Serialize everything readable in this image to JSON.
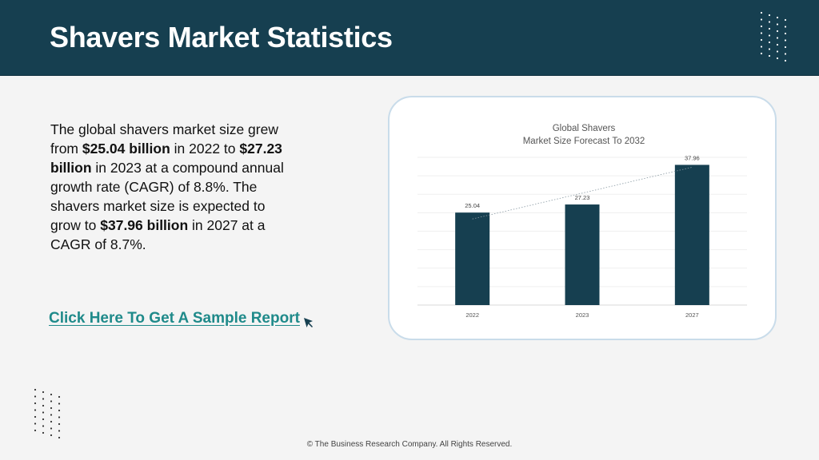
{
  "header": {
    "title": "Shavers Market Statistics"
  },
  "body_text": {
    "p1": "The global shavers market size grew from ",
    "b1": "$25.04 billion",
    "p2": " in 2022 to ",
    "b2": "$27.23 billion",
    "p3": " in 2023 at a compound annual growth rate (CAGR) of 8.8%. The shavers market size is expected to grow to ",
    "b3": "$37.96 billion",
    "p4": " in 2027 at a CAGR of 8.7%."
  },
  "cta": {
    "label": "Click Here To Get A Sample Report",
    "icon": "cursor-arrow-icon"
  },
  "colors": {
    "header_bg": "#163f50",
    "bar": "#163f50",
    "link": "#1f8a8a"
  },
  "footer": {
    "text": "© The Business Research Company. All Rights Reserved."
  },
  "chart_data": {
    "type": "bar",
    "title": "Global Shavers\nMarket Size Forecast To 2032",
    "title_lines": [
      "Global Shavers",
      "Market Size Forecast To 2032"
    ],
    "categories": [
      "2022",
      "2023",
      "2027"
    ],
    "values": [
      25.04,
      27.23,
      37.96
    ],
    "data_labels": [
      "25.04",
      "27.23",
      "37.96"
    ],
    "ylim": [
      0,
      40
    ],
    "grid": true,
    "trendline": "dotted linear",
    "legend": "none"
  }
}
